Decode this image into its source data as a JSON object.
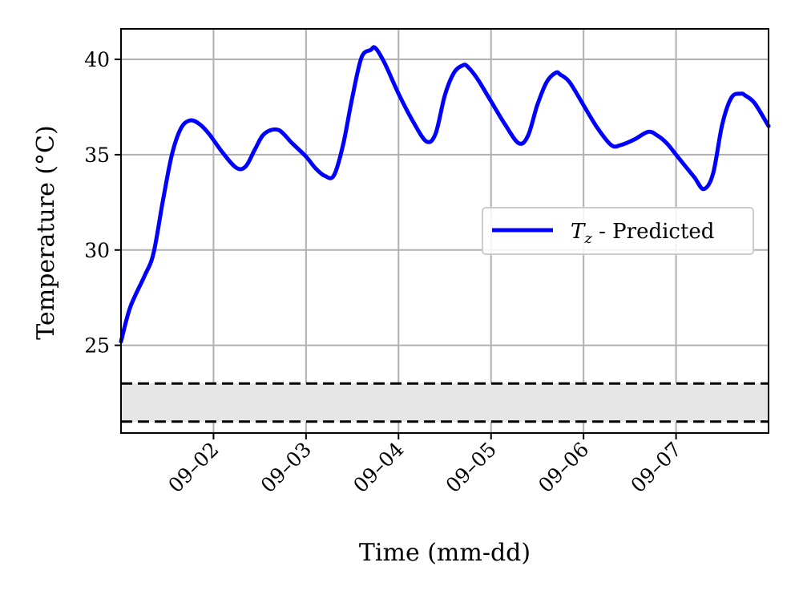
{
  "chart_data": {
    "type": "line",
    "xlabel": "Time (mm-dd)",
    "ylabel": "Temperature (°C)",
    "x_ticks": [
      "09–02",
      "09–03",
      "09–04",
      "09–05",
      "09–06",
      "09–07"
    ],
    "x_range": [
      1.0,
      8.0
    ],
    "y_ticks": [
      25,
      30,
      35,
      40
    ],
    "ylim": [
      20.4,
      41.6
    ],
    "grid": true,
    "legend_position": "center-right",
    "comfort_band": {
      "lower": 21.0,
      "upper": 23.0,
      "color": "#e6e6e6",
      "line_style": "dashed"
    },
    "series": [
      {
        "name": "T_z - Predicted",
        "color": "#0000ff",
        "x": [
          1.0,
          1.1,
          1.25,
          1.35,
          1.45,
          1.55,
          1.65,
          1.75,
          1.85,
          1.95,
          2.1,
          2.25,
          2.35,
          2.45,
          2.55,
          2.7,
          2.85,
          3.0,
          3.1,
          3.2,
          3.3,
          3.4,
          3.5,
          3.6,
          3.7,
          3.75,
          3.85,
          4.0,
          4.15,
          4.3,
          4.4,
          4.5,
          4.6,
          4.7,
          4.75,
          4.85,
          5.0,
          5.15,
          5.3,
          5.4,
          5.5,
          5.6,
          5.7,
          5.75,
          5.85,
          6.0,
          6.15,
          6.3,
          6.4,
          6.55,
          6.7,
          6.8,
          6.9,
          7.0,
          7.1,
          7.2,
          7.3,
          7.4,
          7.5,
          7.6,
          7.7,
          7.75,
          7.85,
          8.0
        ],
        "y": [
          25.2,
          27.0,
          28.6,
          29.8,
          32.5,
          35.0,
          36.4,
          36.8,
          36.6,
          36.1,
          35.1,
          34.3,
          34.4,
          35.3,
          36.1,
          36.3,
          35.6,
          34.9,
          34.3,
          33.9,
          33.9,
          35.5,
          38.0,
          40.1,
          40.5,
          40.6,
          39.8,
          38.2,
          36.8,
          35.7,
          36.1,
          38.1,
          39.3,
          39.7,
          39.6,
          39.0,
          37.8,
          36.6,
          35.6,
          36.0,
          37.6,
          38.8,
          39.3,
          39.2,
          38.8,
          37.6,
          36.4,
          35.5,
          35.5,
          35.8,
          36.2,
          36.0,
          35.6,
          35.0,
          34.4,
          33.8,
          33.2,
          34.0,
          36.6,
          38.0,
          38.2,
          38.1,
          37.7,
          36.5
        ]
      }
    ],
    "legend": {
      "label_symbol": "T",
      "label_subscript": "z",
      "label_suffix": " - Predicted"
    }
  }
}
